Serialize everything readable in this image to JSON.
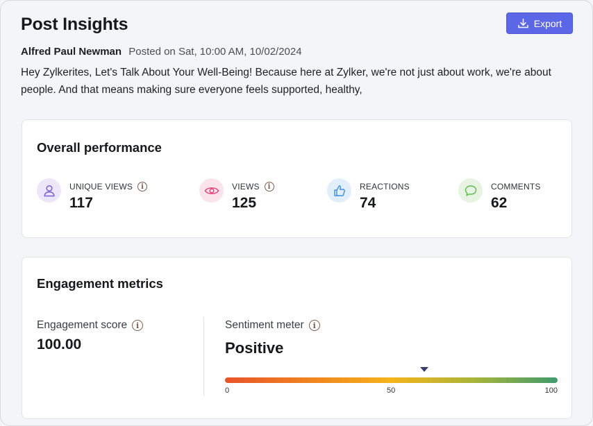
{
  "page": {
    "title": "Post Insights",
    "export_label": "Export"
  },
  "post": {
    "author": "Alfred Paul Newman",
    "posted": "Posted on Sat, 10:00 AM, 10/02/2024",
    "text": "Hey Zylkerites, Let's Talk About Your Well-Being! Because here at Zylker, we're not just about work, we're about people. And that means making sure everyone feels supported, healthy,"
  },
  "overall": {
    "title": "Overall performance",
    "stats": [
      {
        "label": "UNIQUE VIEWS",
        "value": "117",
        "icon": "user-icon",
        "color": "#7b5fd6",
        "bg": "#ece6fb",
        "has_info": true
      },
      {
        "label": "VIEWS",
        "value": "125",
        "icon": "eye-icon",
        "color": "#e0467a",
        "bg": "#fbe3ec",
        "has_info": true
      },
      {
        "label": "REACTIONS",
        "value": "74",
        "icon": "thumbs-up-icon",
        "color": "#3d8fe0",
        "bg": "#e2eefb",
        "has_info": false
      },
      {
        "label": "COMMENTS",
        "value": "62",
        "icon": "comment-icon",
        "color": "#5fb84a",
        "bg": "#e6f4e1",
        "has_info": false
      }
    ]
  },
  "engagement": {
    "title": "Engagement metrics",
    "score_label": "Engagement score",
    "score_value": "100.00",
    "sentiment_label": "Sentiment meter",
    "sentiment_value": "Positive",
    "sentiment_level": 60,
    "scale": {
      "min": "0",
      "mid": "50",
      "max": "100"
    }
  }
}
